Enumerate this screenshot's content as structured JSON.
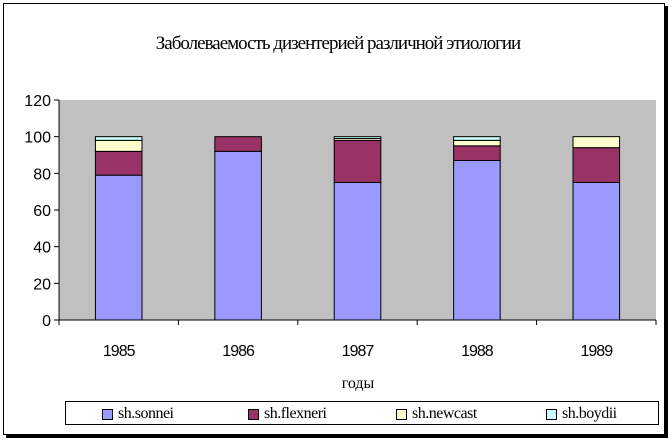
{
  "chart_data": {
    "type": "bar",
    "stacked": true,
    "title": "Заболеваемость дизентерией различной этиологии",
    "xlabel": "годы",
    "ylabel": "",
    "categories": [
      "1985",
      "1986",
      "1987",
      "1988",
      "1989"
    ],
    "ylim": [
      0,
      120
    ],
    "yticks": [
      "0",
      "20",
      "40",
      "60",
      "80",
      "100",
      "120"
    ],
    "grid": false,
    "legend_position": "bottom",
    "plot_background": "#c0c0c0",
    "series": [
      {
        "name": "sh.sonnei",
        "color": "#9999ff",
        "values": [
          79,
          92,
          75,
          87,
          75
        ]
      },
      {
        "name": "sh.flexneri",
        "color": "#993366",
        "values": [
          13,
          8,
          23,
          8,
          19
        ]
      },
      {
        "name": "sh.newcast",
        "color": "#ffffcc",
        "values": [
          6,
          0,
          1,
          3,
          6
        ]
      },
      {
        "name": "sh.boydii",
        "color": "#ccffff",
        "values": [
          2,
          0,
          1,
          2,
          0
        ]
      }
    ]
  }
}
